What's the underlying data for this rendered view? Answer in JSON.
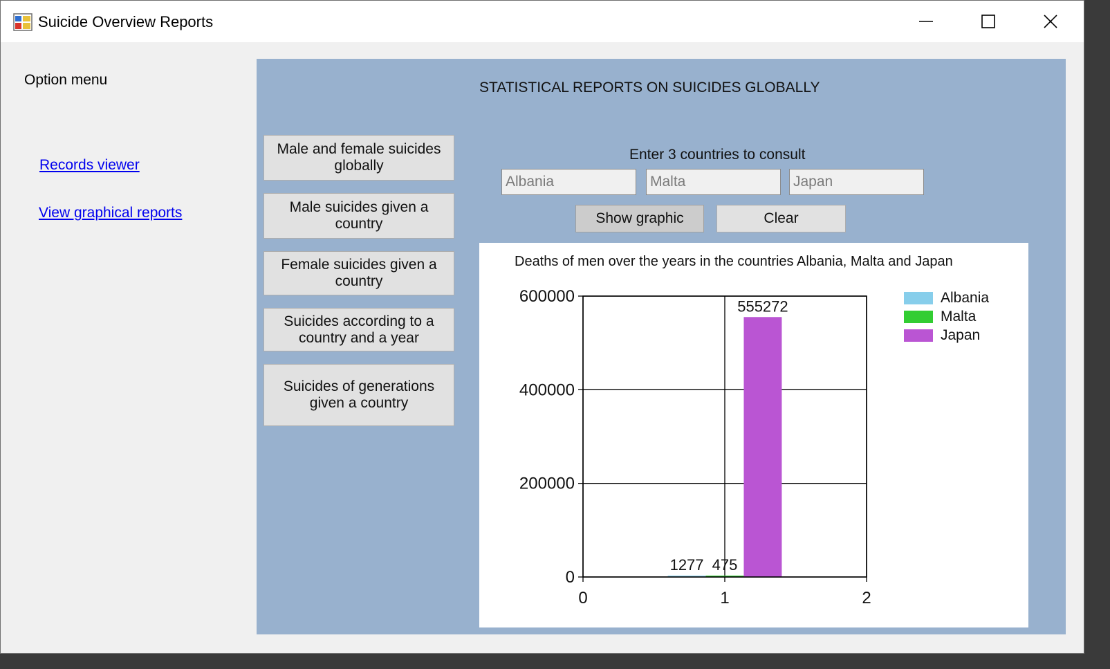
{
  "window": {
    "title": "Suicide Overview Reports",
    "minimize_glyph": "—",
    "close_glyph": "✕"
  },
  "sidebar": {
    "title": "Option menu",
    "links": [
      {
        "label": "Records viewer"
      },
      {
        "label": "View graphical reports"
      }
    ]
  },
  "main": {
    "title": "STATISTICAL REPORTS ON SUICIDES GLOBALLY",
    "report_buttons": [
      {
        "label": "Male and female suicides globally"
      },
      {
        "label": "Male suicides given a country"
      },
      {
        "label": "Female suicides given a country"
      },
      {
        "label": "Suicides according to a country and a year"
      },
      {
        "label": "Suicides of generations given a country"
      }
    ],
    "countries_label": "Enter 3 countries to consult",
    "countries": [
      {
        "value": "Albania"
      },
      {
        "value": "Malta"
      },
      {
        "value": "Japan"
      }
    ],
    "show_button": "Show graphic",
    "clear_button": "Clear"
  },
  "chart_data": {
    "type": "bar",
    "title": "Deaths of men over the years in the countries  Albania, Malta and Japan",
    "x_ticks": [
      "0",
      "1",
      "2"
    ],
    "y_ticks": [
      "600000",
      "400000",
      "200000",
      "0"
    ],
    "xlim": [
      0,
      2
    ],
    "ylim": [
      0,
      600000
    ],
    "grid": true,
    "legend_position": "top-right",
    "series": [
      {
        "name": "Albania",
        "x": 1,
        "value": 1277,
        "label": "1277",
        "color": "#87ceeb"
      },
      {
        "name": "Malta",
        "x": 1,
        "value": 475,
        "label": "475",
        "color": "#32cd32"
      },
      {
        "name": "Japan",
        "x": 1,
        "value": 555272,
        "label": "555272",
        "color": "#ba55d3"
      }
    ]
  }
}
